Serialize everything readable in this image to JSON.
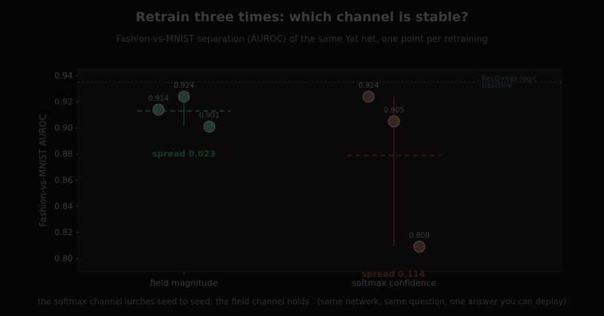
{
  "chart_data": {
    "type": "scatter",
    "title": "Retrain three times: which channel is stable?",
    "subtitle": "Fashion-vs-MNIST separation (AUROC) of the same Yat net, one point per retraining",
    "ylabel": "Fashion-vs-MNIST AUROC",
    "ylim": [
      0.79,
      0.945
    ],
    "yticks": [
      "0.80",
      "0.82",
      "0.84",
      "0.86",
      "0.88",
      "0.90",
      "0.92",
      "0.94"
    ],
    "categories": [
      "field magnitude",
      "softmax confidence"
    ],
    "series": [
      {
        "category": "field magnitude",
        "values": [
          0.914,
          0.924,
          0.901
        ],
        "labels": [
          "0.914",
          "0.924",
          "0.901"
        ],
        "mean": 0.913,
        "spread_label": "spread 0.023",
        "color": "#1f3a2e",
        "accent": "#143a26"
      },
      {
        "category": "softmax confidence",
        "values": [
          0.924,
          0.905,
          0.809
        ],
        "labels": [
          "0.924",
          "0.905",
          "0.809"
        ],
        "mean": 0.879,
        "spread_label": "spread 0.114",
        "color": "#3a2220",
        "accent": "#3a1a16"
      }
    ],
    "baseline": {
      "value": 0.935,
      "label_line1": "ReLU max-logit",
      "label_line2": "baseline",
      "color": "#1c2a38"
    },
    "grid": false,
    "footer": "the softmax channel lurches seed to seed; the field channel holds   (same network, same question, one answer you can deploy)"
  }
}
